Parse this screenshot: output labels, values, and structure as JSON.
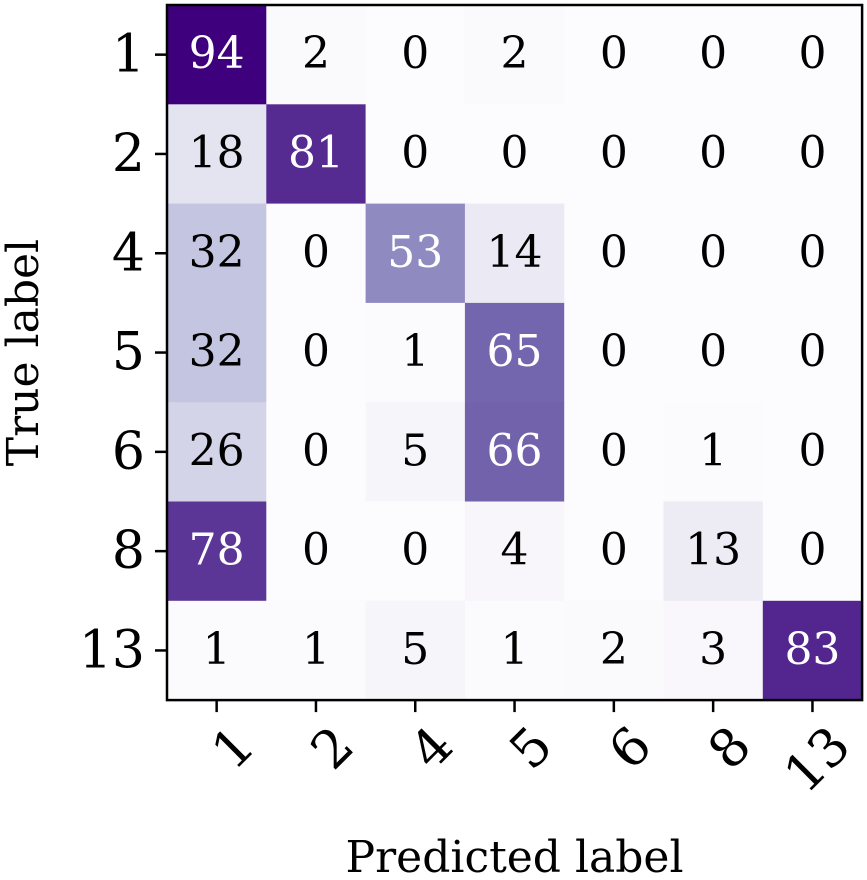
{
  "chart_data": {
    "type": "heatmap",
    "title": "",
    "xlabel": "Predicted label",
    "ylabel": "True label",
    "x_categories": [
      "1",
      "2",
      "4",
      "5",
      "6",
      "8",
      "13"
    ],
    "y_categories": [
      "1",
      "2",
      "4",
      "5",
      "6",
      "8",
      "13"
    ],
    "values": [
      [
        94,
        2,
        0,
        2,
        0,
        0,
        0
      ],
      [
        18,
        81,
        0,
        0,
        0,
        0,
        0
      ],
      [
        32,
        0,
        53,
        14,
        0,
        0,
        0
      ],
      [
        32,
        0,
        1,
        65,
        0,
        0,
        0
      ],
      [
        26,
        0,
        5,
        66,
        0,
        1,
        0
      ],
      [
        78,
        0,
        0,
        4,
        0,
        13,
        0
      ],
      [
        1,
        1,
        5,
        1,
        2,
        3,
        83
      ]
    ],
    "colormap": "Purples",
    "vmin": 0,
    "vmax": 94,
    "x_tick_rotation": 45,
    "grid": false
  }
}
